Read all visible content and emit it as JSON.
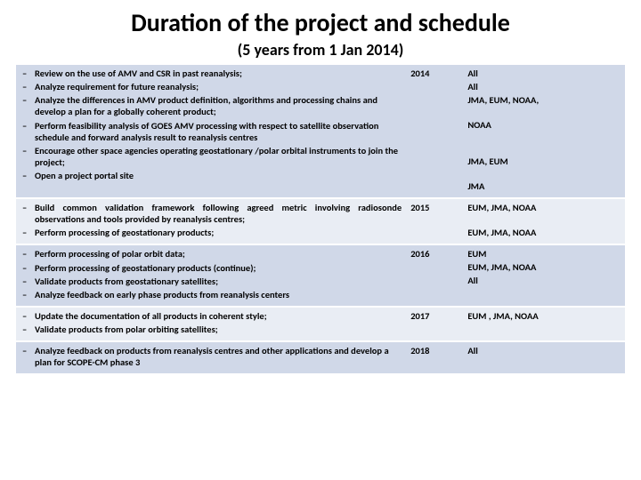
{
  "header": {
    "title": "Duration of the project and schedule",
    "subtitle": "(5 years from 1 Jan 2014)"
  },
  "colors": {
    "row_a": "#d0d8e8",
    "row_b": "#e9edf4",
    "separator": "#ffffff"
  },
  "groups": [
    {
      "year": "2014",
      "shade": "a",
      "items": [
        {
          "text": "Review on the use of AMV and CSR in past reanalysis;",
          "who": "All"
        },
        {
          "text": "Analyze requirement for future reanalysis;",
          "who": "All"
        },
        {
          "text": "Analyze the differences in AMV product definition, algorithms and processing chains and develop a plan for a globally coherent product;",
          "who": "JMA, EUM, NOAA,"
        },
        {
          "text": "Perform feasibility analysis of GOES AMV processing with respect to satellite observation schedule and forward analysis result to reanalysis centres",
          "who": "NOAA"
        },
        {
          "text": "Encourage other space agencies operating geostationary /polar orbital instruments to join the project;",
          "who": "JMA, EUM"
        },
        {
          "text": "Open a project portal site",
          "who": "JMA"
        }
      ]
    },
    {
      "year": "2015",
      "shade": "b",
      "items": [
        {
          "text": "Build common validation framework following agreed metric involving radiosonde observations and tools provided by reanalysis centres;",
          "who": "EUM, JMA, NOAA",
          "justify": true
        },
        {
          "text": "Perform processing of geostationary products;",
          "who": "EUM, JMA, NOAA"
        }
      ]
    },
    {
      "year": "2016",
      "shade": "a",
      "items": [
        {
          "text": "Perform processing of polar orbit data;",
          "who": "EUM"
        },
        {
          "text": "Perform processing of geostationary products (continue);",
          "who": "EUM, JMA, NOAA"
        },
        {
          "text": "Validate products from geostationary satellites;",
          "who": "All"
        },
        {
          "text": "Analyze feedback on early phase products from reanalysis centers",
          "who": ""
        }
      ]
    },
    {
      "year": "2017",
      "shade": "b",
      "items": [
        {
          "text": "Update the documentation of all products in coherent style;",
          "who": "EUM , JMA, NOAA"
        },
        {
          "text": "Validate products from polar orbiting satellites;",
          "who": ""
        }
      ]
    },
    {
      "year": "2018",
      "shade": "a",
      "items": [
        {
          "text": "Analyze feedback on products from reanalysis centres and other applications and develop a plan for SCOPE-CM phase 3",
          "who": "All"
        }
      ]
    }
  ]
}
